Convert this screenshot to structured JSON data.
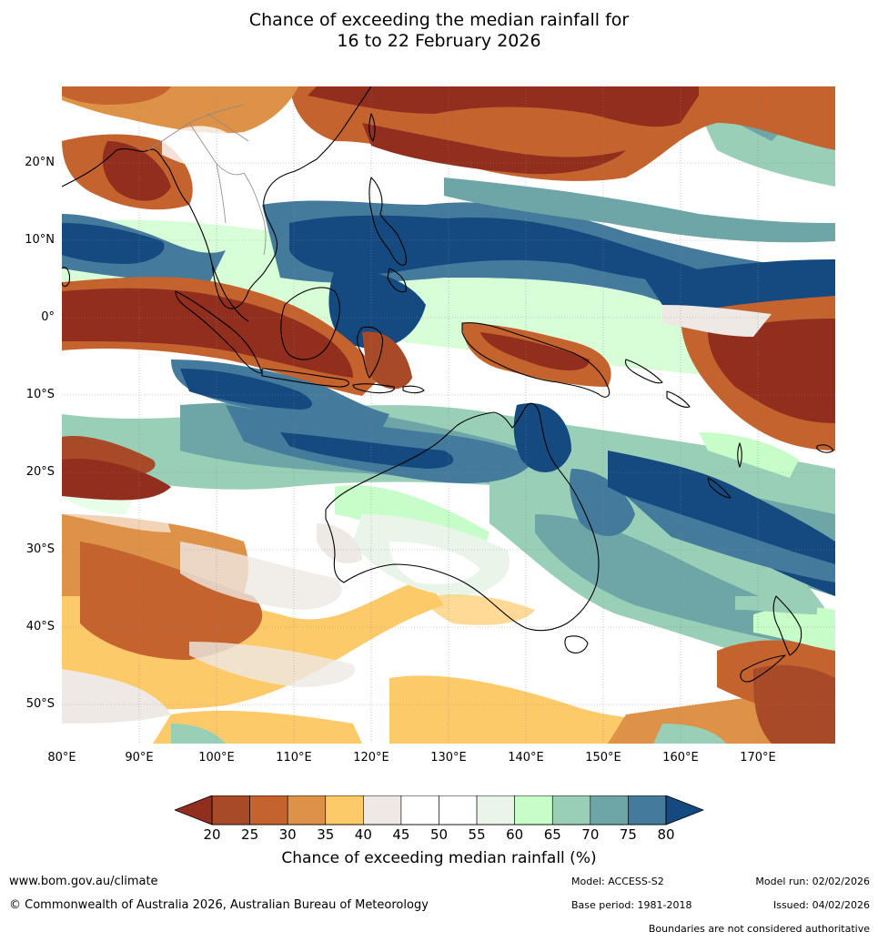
{
  "title_line1": "Chance of exceeding the median rainfall for",
  "title_line2": "16 to 22 February 2026",
  "lat_labels": [
    "20°N",
    "10°N",
    "0°",
    "10°S",
    "20°S",
    "30°S",
    "40°S",
    "50°S"
  ],
  "lon_labels": [
    "80°E",
    "90°E",
    "100°E",
    "110°E",
    "120°E",
    "130°E",
    "140°E",
    "150°E",
    "160°E",
    "170°E"
  ],
  "colorbar": {
    "ticks": [
      "20",
      "25",
      "30",
      "35",
      "40",
      "45",
      "50",
      "55",
      "60",
      "65",
      "70",
      "75",
      "80"
    ],
    "colors": [
      "#a84a28",
      "#c5632f",
      "#de9247",
      "#fdca6a",
      "#eee9e4",
      "#ffffff",
      "#ffffff",
      "#e9f5e8",
      "#c7fdc8",
      "#99cfb7",
      "#6ea6a8",
      "#447b9d"
    ],
    "low_color": "#922e1e",
    "high_color": "#144a80",
    "label": "Chance of exceeding median rainfall (%)"
  },
  "footer": {
    "website": "www.bom.gov.au/climate",
    "copyright": "© Commonwealth of Australia 2026, Australian Bureau of Meteorology",
    "model": "Model: ACCESS-S2",
    "model_run": "Model run: 02/02/2026",
    "base_period": "Base period: 1981-2018",
    "issued": "Issued: 04/02/2026",
    "boundaries": "Boundaries are not considered authoritative"
  }
}
